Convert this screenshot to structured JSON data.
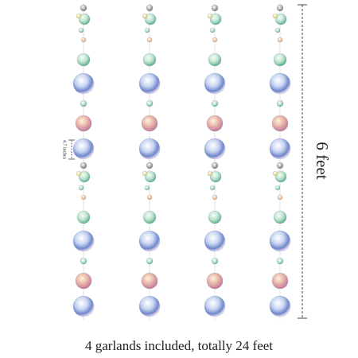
{
  "dimension_height": "6 feet",
  "dimension_spacing": "4.7 inches",
  "caption": "4 garlands included, totally 24 feet"
}
